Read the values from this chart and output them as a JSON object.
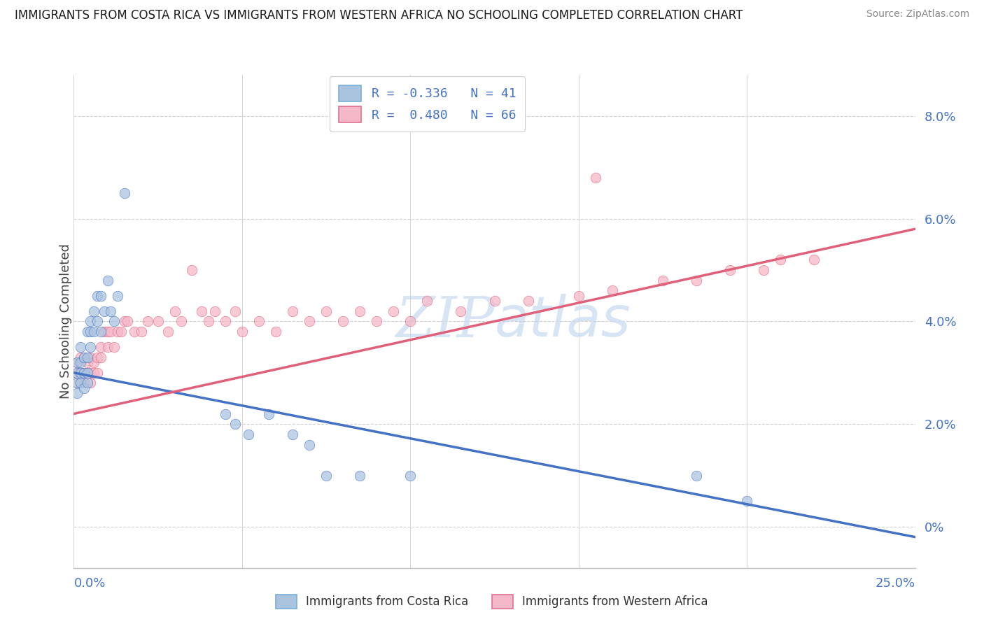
{
  "title": "IMMIGRANTS FROM COSTA RICA VS IMMIGRANTS FROM WESTERN AFRICA NO SCHOOLING COMPLETED CORRELATION CHART",
  "source": "Source: ZipAtlas.com",
  "ylabel": "No Schooling Completed",
  "color_blue": "#aac4e0",
  "color_pink": "#f4b8c8",
  "line_blue": "#4472c4",
  "line_pink": "#e0607a",
  "text_blue": "#4472c4",
  "watermark_color": "#c5d9ef",
  "background": "#ffffff",
  "grid_color": "#d0d0d0",
  "xmin": 0.0,
  "xmax": 0.25,
  "ymin": -0.008,
  "ymax": 0.088,
  "ytick_vals": [
    0.0,
    0.02,
    0.04,
    0.06,
    0.08
  ],
  "ytick_labels": [
    "0%",
    "2.0%",
    "4.0%",
    "6.0%",
    "8.0%"
  ],
  "blue_line_start_y": 0.03,
  "blue_line_end_y": -0.002,
  "pink_line_start_y": 0.022,
  "pink_line_end_y": 0.058,
  "blue_x": [
    0.001,
    0.001,
    0.001,
    0.001,
    0.002,
    0.002,
    0.002,
    0.002,
    0.003,
    0.003,
    0.003,
    0.004,
    0.004,
    0.004,
    0.004,
    0.005,
    0.005,
    0.005,
    0.006,
    0.006,
    0.007,
    0.007,
    0.008,
    0.008,
    0.009,
    0.01,
    0.011,
    0.012,
    0.013,
    0.015,
    0.045,
    0.048,
    0.052,
    0.058,
    0.065,
    0.07,
    0.075,
    0.085,
    0.1,
    0.185,
    0.2
  ],
  "blue_y": [
    0.028,
    0.03,
    0.032,
    0.026,
    0.032,
    0.03,
    0.028,
    0.035,
    0.033,
    0.03,
    0.027,
    0.038,
    0.033,
    0.03,
    0.028,
    0.04,
    0.038,
    0.035,
    0.042,
    0.038,
    0.045,
    0.04,
    0.045,
    0.038,
    0.042,
    0.048,
    0.042,
    0.04,
    0.045,
    0.065,
    0.022,
    0.02,
    0.018,
    0.022,
    0.018,
    0.016,
    0.01,
    0.01,
    0.01,
    0.01,
    0.005
  ],
  "pink_x": [
    0.001,
    0.001,
    0.001,
    0.002,
    0.002,
    0.002,
    0.003,
    0.003,
    0.003,
    0.004,
    0.004,
    0.005,
    0.005,
    0.005,
    0.006,
    0.006,
    0.007,
    0.007,
    0.008,
    0.008,
    0.009,
    0.01,
    0.01,
    0.011,
    0.012,
    0.013,
    0.014,
    0.015,
    0.016,
    0.018,
    0.02,
    0.022,
    0.025,
    0.028,
    0.03,
    0.032,
    0.035,
    0.038,
    0.04,
    0.042,
    0.045,
    0.048,
    0.05,
    0.055,
    0.06,
    0.065,
    0.07,
    0.075,
    0.08,
    0.085,
    0.09,
    0.095,
    0.1,
    0.105,
    0.115,
    0.125,
    0.135,
    0.15,
    0.16,
    0.175,
    0.185,
    0.195,
    0.205,
    0.21,
    0.22,
    0.155
  ],
  "pink_y": [
    0.028,
    0.03,
    0.032,
    0.028,
    0.033,
    0.03,
    0.03,
    0.033,
    0.028,
    0.032,
    0.03,
    0.033,
    0.03,
    0.028,
    0.032,
    0.03,
    0.033,
    0.03,
    0.035,
    0.033,
    0.038,
    0.035,
    0.038,
    0.038,
    0.035,
    0.038,
    0.038,
    0.04,
    0.04,
    0.038,
    0.038,
    0.04,
    0.04,
    0.038,
    0.042,
    0.04,
    0.05,
    0.042,
    0.04,
    0.042,
    0.04,
    0.042,
    0.038,
    0.04,
    0.038,
    0.042,
    0.04,
    0.042,
    0.04,
    0.042,
    0.04,
    0.042,
    0.04,
    0.044,
    0.042,
    0.044,
    0.044,
    0.045,
    0.046,
    0.048,
    0.048,
    0.05,
    0.05,
    0.052,
    0.052,
    0.068
  ]
}
